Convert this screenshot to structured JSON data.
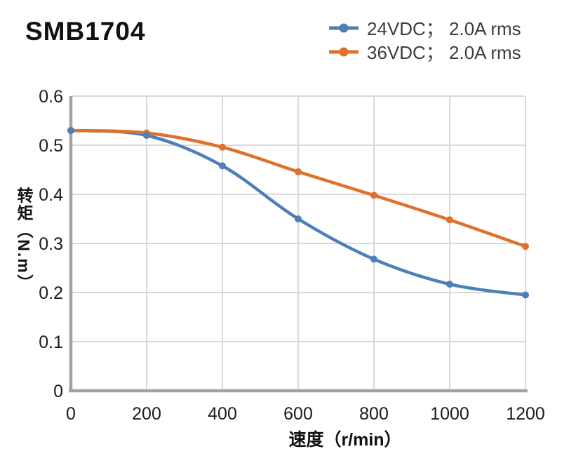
{
  "title": "SMB1704",
  "legend": {
    "items": [
      {
        "label": "24VDC； 2.0A rms",
        "color": "#4d7fb9"
      },
      {
        "label": "36VDC； 2.0A rms",
        "color": "#e0702e"
      }
    ]
  },
  "chart_data": {
    "type": "line",
    "title": "SMB1704",
    "x": [
      0,
      200,
      400,
      600,
      800,
      1000,
      1200
    ],
    "series": [
      {
        "name": "24VDC； 2.0A rms",
        "color": "#4d7fb9",
        "values": [
          0.53,
          0.52,
          0.458,
          0.35,
          0.268,
          0.217,
          0.195
        ]
      },
      {
        "name": "36VDC； 2.0A rms",
        "color": "#e0702e",
        "values": [
          0.53,
          0.525,
          0.496,
          0.446,
          0.398,
          0.348,
          0.294
        ]
      }
    ],
    "xlabel": "速度（r/min）",
    "ylabel": "转矩（N.m）",
    "xlim": [
      0,
      1200
    ],
    "ylim": [
      0,
      0.6
    ],
    "x_ticks": [
      0,
      200,
      400,
      600,
      800,
      1000,
      1200
    ],
    "y_ticks": [
      0,
      0.1,
      0.2,
      0.3,
      0.4,
      0.5,
      0.6
    ],
    "grid": true,
    "smooth": true,
    "legend_position": "top-right"
  },
  "colors": {
    "grid": "#d9d9d9",
    "axis": "#a3a3a3",
    "tick_text": "#1c1c1c",
    "legend_text": "#3d3d3d",
    "title_text": "#111111"
  }
}
